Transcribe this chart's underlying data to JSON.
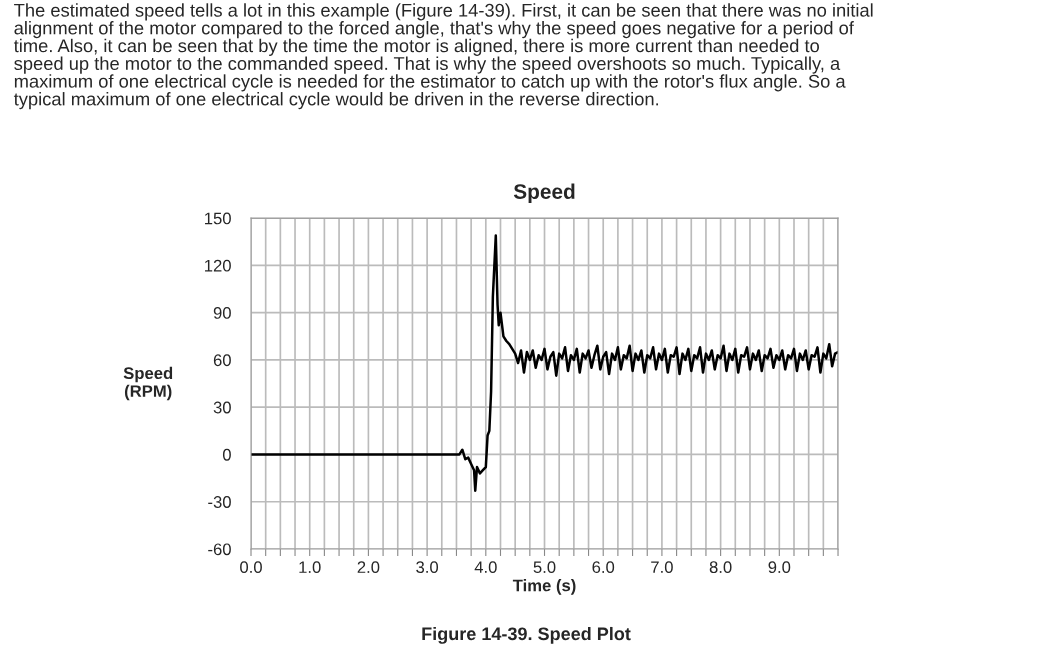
{
  "chart_data": {
    "type": "line",
    "title": "Speed",
    "xlabel": "Time (s)",
    "ylabel": "Speed\n(RPM)",
    "annotations": [
      "The estimated speed tells a lot in this example (Figure 14-39). First, it can be seen that there was no initial\nalignment of the motor compared to the forced angle, that's why the speed goes negative for a period of\ntime. Also, it can be seen that by the time the motor is aligned, there is more current than needed to\nspeed up the motor to the commanded speed. That is why the speed overshoots so much. Typically, a\nmaximum of one electrical cycle is needed for the estimator to catch up with the rotor's flux angle. So a\ntypical maximum of one electrical cycle would be driven in the reverse direction.",
      "Figure 14-39. Speed Plot"
    ],
    "xlim": [
      0,
      10
    ],
    "ylim": [
      -60,
      150
    ],
    "xticks": [
      {
        "value": 0,
        "label": "0.0"
      },
      {
        "value": 0.25,
        "label": null
      },
      {
        "value": 0.5,
        "label": null
      },
      {
        "value": 0.75,
        "label": null
      },
      {
        "value": 1,
        "label": "1.0"
      },
      {
        "value": 1.25,
        "label": null
      },
      {
        "value": 1.5,
        "label": null
      },
      {
        "value": 1.75,
        "label": null
      },
      {
        "value": 2,
        "label": "2.0"
      },
      {
        "value": 2.25,
        "label": null
      },
      {
        "value": 2.5,
        "label": null
      },
      {
        "value": 2.75,
        "label": null
      },
      {
        "value": 3,
        "label": "3.0"
      },
      {
        "value": 3.25,
        "label": null
      },
      {
        "value": 3.5,
        "label": null
      },
      {
        "value": 3.75,
        "label": null
      },
      {
        "value": 4,
        "label": "4.0"
      },
      {
        "value": 4.25,
        "label": null
      },
      {
        "value": 4.5,
        "label": null
      },
      {
        "value": 4.75,
        "label": null
      },
      {
        "value": 5,
        "label": "5.0"
      },
      {
        "value": 5.25,
        "label": null
      },
      {
        "value": 5.5,
        "label": null
      },
      {
        "value": 5.75,
        "label": null
      },
      {
        "value": 6,
        "label": "6.0"
      },
      {
        "value": 6.25,
        "label": null
      },
      {
        "value": 6.5,
        "label": null
      },
      {
        "value": 6.75,
        "label": null
      },
      {
        "value": 7,
        "label": "7.0"
      },
      {
        "value": 7.25,
        "label": null
      },
      {
        "value": 7.5,
        "label": null
      },
      {
        "value": 7.75,
        "label": null
      },
      {
        "value": 8,
        "label": "8.0"
      },
      {
        "value": 8.25,
        "label": null
      },
      {
        "value": 8.5,
        "label": null
      },
      {
        "value": 8.75,
        "label": null
      },
      {
        "value": 9,
        "label": "9.0"
      },
      {
        "value": 9.25,
        "label": null
      },
      {
        "value": 9.5,
        "label": null
      },
      {
        "value": 9.75,
        "label": null
      },
      {
        "value": 10,
        "label": null
      }
    ],
    "yticks": [
      -60,
      -30,
      0,
      30,
      60,
      90,
      120,
      150
    ],
    "grid": true,
    "legend": false,
    "marker": "none",
    "line_style": "solid",
    "series": [
      {
        "color": "#000000",
        "x": [
          0,
          3.55,
          3.6,
          3.65,
          3.7,
          3.75,
          3.8,
          3.82,
          3.85,
          3.9,
          3.95,
          4.0,
          4.03,
          4.06,
          4.09,
          4.12,
          4.17,
          4.2,
          4.22,
          4.25,
          4.3,
          4.35,
          4.4,
          4.45,
          4.5,
          4.55,
          4.6,
          4.65,
          4.7,
          4.75,
          4.8,
          4.85,
          4.9,
          4.95,
          5.0,
          5.05,
          5.1,
          5.15,
          5.2,
          5.25,
          5.3,
          5.35,
          5.4,
          5.45,
          5.5,
          5.55,
          5.6,
          5.65,
          5.7,
          5.75,
          5.8,
          5.85,
          5.9,
          5.95,
          6.0,
          6.05,
          6.1,
          6.15,
          6.2,
          6.25,
          6.3,
          6.35,
          6.4,
          6.45,
          6.5,
          6.55,
          6.6,
          6.65,
          6.7,
          6.75,
          6.8,
          6.85,
          6.9,
          6.95,
          7.0,
          7.05,
          7.1,
          7.15,
          7.2,
          7.25,
          7.3,
          7.35,
          7.4,
          7.45,
          7.5,
          7.55,
          7.6,
          7.65,
          7.7,
          7.75,
          7.8,
          7.85,
          7.9,
          7.95,
          8.0,
          8.05,
          8.1,
          8.15,
          8.2,
          8.25,
          8.3,
          8.35,
          8.4,
          8.45,
          8.5,
          8.55,
          8.6,
          8.65,
          8.7,
          8.75,
          8.8,
          8.85,
          8.9,
          8.95,
          9.0,
          9.05,
          9.1,
          9.15,
          9.2,
          9.25,
          9.3,
          9.35,
          9.4,
          9.45,
          9.5,
          9.55,
          9.6,
          9.65,
          9.7,
          9.75,
          9.8,
          9.85,
          9.9,
          9.95,
          10.0
        ],
        "values": [
          0,
          0,
          3,
          -3,
          -2,
          -6,
          -10,
          -23,
          -8,
          -12,
          -10,
          -8,
          12,
          15,
          40,
          100,
          139,
          95,
          82,
          90,
          75,
          72,
          70,
          67,
          64,
          58,
          66,
          52,
          65,
          60,
          66,
          55,
          63,
          60,
          67,
          54,
          62,
          65,
          50,
          64,
          61,
          68,
          53,
          63,
          60,
          67,
          52,
          64,
          61,
          66,
          55,
          63,
          69,
          54,
          62,
          65,
          51,
          64,
          60,
          68,
          54,
          63,
          61,
          69,
          53,
          64,
          60,
          66,
          52,
          63,
          61,
          68,
          54,
          64,
          60,
          67,
          52,
          63,
          62,
          68,
          51,
          64,
          60,
          67,
          53,
          63,
          61,
          68,
          52,
          64,
          60,
          66,
          54,
          63,
          61,
          69,
          53,
          64,
          60,
          67,
          52,
          63,
          62,
          68,
          54,
          64,
          60,
          66,
          53,
          63,
          61,
          67,
          55,
          63,
          60,
          66,
          54,
          63,
          61,
          67,
          53,
          64,
          60,
          66,
          54,
          63,
          62,
          68,
          52,
          64,
          61,
          70,
          56,
          64,
          65
        ]
      }
    ]
  }
}
